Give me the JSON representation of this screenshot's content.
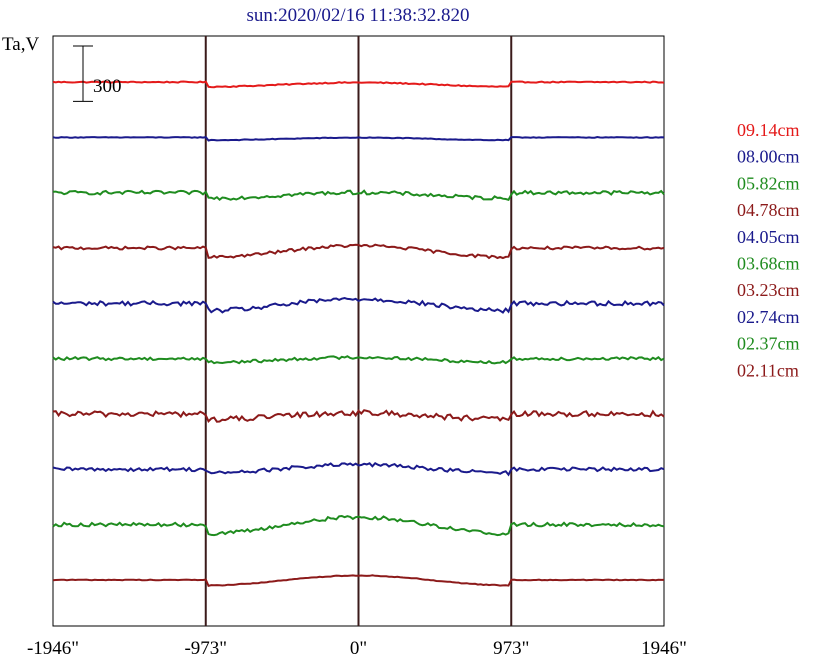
{
  "chart_data": {
    "type": "line",
    "title": "sun:2020/02/16 11:38:32.820",
    "ylabel": "Ta,V",
    "xlim": [
      -1946,
      1946
    ],
    "x_ticks": [
      -1946,
      -973,
      0,
      973,
      1946
    ],
    "x_tick_labels": [
      "-1946\"",
      "-973\"",
      "0\"",
      "973\"",
      "1946\""
    ],
    "vertical_lines_at": [
      -973,
      0,
      973
    ],
    "scale_bar": {
      "value": 300,
      "label": "300"
    },
    "series": [
      {
        "name": "09.14cm",
        "color": "#e41a1a",
        "offset": 2700,
        "amplitude": 15,
        "noise": 3,
        "dip": -25,
        "bump": 0
      },
      {
        "name": "08.00cm",
        "color": "#1a1a8c",
        "offset": 2400,
        "amplitude": 10,
        "noise": 2,
        "dip": -15,
        "bump": 0
      },
      {
        "name": "05.82cm",
        "color": "#1f8c1f",
        "offset": 2100,
        "amplitude": 15,
        "noise": 10,
        "dip": -30,
        "bump": 5
      },
      {
        "name": "04.78cm",
        "color": "#8c1a1a",
        "offset": 1800,
        "amplitude": 15,
        "noise": 8,
        "dip": -50,
        "bump": 20
      },
      {
        "name": "04.05cm",
        "color": "#1a1a8c",
        "offset": 1500,
        "amplitude": 20,
        "noise": 12,
        "dip": -40,
        "bump": 30
      },
      {
        "name": "03.68cm",
        "color": "#1f8c1f",
        "offset": 1200,
        "amplitude": 15,
        "noise": 8,
        "dip": -20,
        "bump": 10
      },
      {
        "name": "03.23cm",
        "color": "#8c1a1a",
        "offset": 900,
        "amplitude": 20,
        "noise": 15,
        "dip": -30,
        "bump": 10
      },
      {
        "name": "02.74cm",
        "color": "#1a1a8c",
        "offset": 600,
        "amplitude": 15,
        "noise": 10,
        "dip": -20,
        "bump": 30
      },
      {
        "name": "02.37cm",
        "color": "#1f8c1f",
        "offset": 300,
        "amplitude": 20,
        "noise": 10,
        "dip": -50,
        "bump": 50
      },
      {
        "name": "02.11cm",
        "color": "#8c1a1a",
        "offset": 0,
        "amplitude": 10,
        "noise": 2,
        "dip": -30,
        "bump": 30
      }
    ],
    "ylim": [
      -250,
      2950
    ]
  }
}
